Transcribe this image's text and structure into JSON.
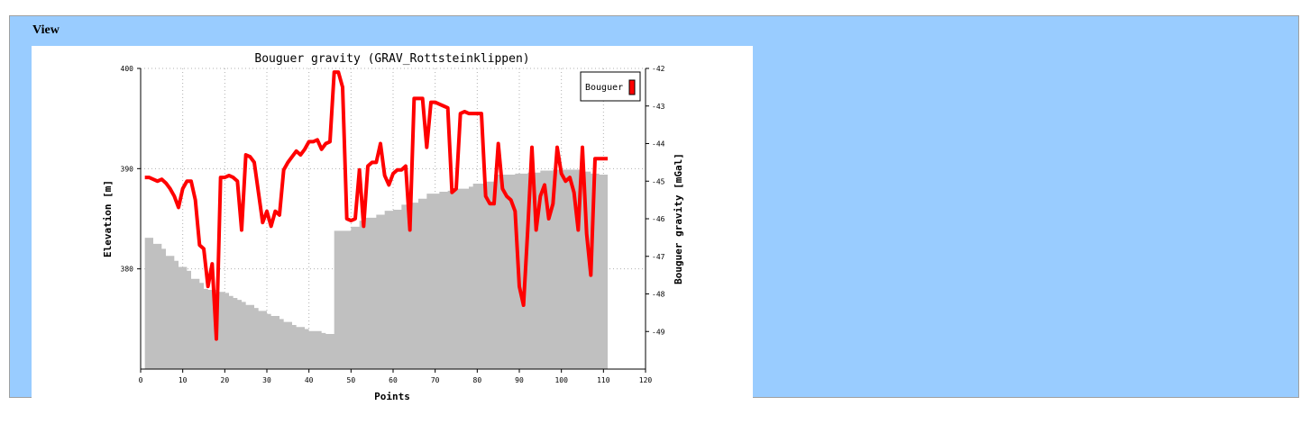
{
  "panel": {
    "legend": "View"
  },
  "chart_data": {
    "type": "line",
    "title": "Bouguer gravity (GRAV_Rottsteinklippen)",
    "xlabel": "Points",
    "ylabel_left": "Elevation [m]",
    "ylabel_right": "Bouguer gravity [mGal]",
    "xlim": [
      0,
      120
    ],
    "xticks": [
      0,
      10,
      20,
      30,
      40,
      50,
      60,
      70,
      80,
      90,
      100,
      110,
      120
    ],
    "ylim_left": [
      370,
      400
    ],
    "yticks_left": [
      380,
      390,
      400
    ],
    "ylim_right": [
      -50,
      -42
    ],
    "yticks_right": [
      -42,
      -43,
      -44,
      -45,
      -46,
      -47,
      -48,
      -49
    ],
    "grid": true,
    "legend_position": "top-right",
    "colors": {
      "gravity": "#ff0000",
      "elevation": "#c0c0c0",
      "panel": "#99ccff"
    },
    "series": [
      {
        "name": "Bouguer",
        "axis": "right",
        "x": [
          1,
          2,
          3,
          4,
          5,
          6,
          7,
          8,
          9,
          10,
          11,
          12,
          13,
          14,
          15,
          16,
          17,
          18,
          19,
          20,
          21,
          22,
          23,
          24,
          25,
          26,
          27,
          28,
          29,
          30,
          31,
          32,
          33,
          34,
          35,
          36,
          37,
          38,
          39,
          40,
          41,
          42,
          43,
          44,
          45,
          46,
          47,
          48,
          49,
          50,
          51,
          52,
          53,
          54,
          55,
          56,
          57,
          58,
          59,
          60,
          61,
          62,
          63,
          64,
          65,
          66,
          67,
          68,
          69,
          70,
          71,
          72,
          73,
          74,
          75,
          76,
          77,
          78,
          79,
          80,
          81,
          82,
          83,
          84,
          85,
          86,
          87,
          88,
          89,
          90,
          91,
          92,
          93,
          94,
          95,
          96,
          97,
          98,
          99,
          100,
          101,
          102,
          103,
          104,
          105,
          106,
          107,
          108,
          109,
          110,
          111
        ],
        "values": [
          -44.9,
          -44.9,
          -44.95,
          -45,
          -44.95,
          -45.05,
          -45.2,
          -45.4,
          -45.7,
          -45.2,
          -45.0,
          -45.0,
          -45.5,
          -46.7,
          -46.8,
          -47.8,
          -47.2,
          -49.2,
          -44.9,
          -44.9,
          -44.85,
          -44.9,
          -45.0,
          -46.3,
          -44.3,
          -44.35,
          -44.5,
          -45.3,
          -46.1,
          -45.8,
          -46.2,
          -45.8,
          -45.9,
          -44.7,
          -44.5,
          -44.35,
          -44.2,
          -44.3,
          -44.15,
          -43.95,
          -43.95,
          -43.9,
          -44.15,
          -44.0,
          -43.95,
          -42.1,
          -42.1,
          -42.5,
          -46.0,
          -46.05,
          -46.0,
          -44.7,
          -46.2,
          -44.6,
          -44.5,
          -44.5,
          -44.0,
          -44.85,
          -45.1,
          -44.8,
          -44.7,
          -44.7,
          -44.6,
          -46.3,
          -42.8,
          -42.8,
          -42.8,
          -44.1,
          -42.9,
          -42.9,
          -42.95,
          -43.0,
          -43.05,
          -45.3,
          -45.2,
          -43.2,
          -43.15,
          -43.2,
          -43.2,
          -43.2,
          -43.2,
          -45.4,
          -45.6,
          -45.6,
          -44.0,
          -45.2,
          -45.4,
          -45.5,
          -45.8,
          -47.8,
          -48.3,
          -46.3,
          -44.1,
          -46.3,
          -45.4,
          -45.1,
          -46.0,
          -45.6,
          -44.1,
          -44.8,
          -45.0,
          -44.9,
          -45.3,
          -46.3,
          -44.1,
          -46.4,
          -47.5,
          -44.4,
          -44.4,
          -44.4,
          -44.4
        ]
      },
      {
        "name": "Elevation",
        "axis": "left",
        "x": [
          1,
          2,
          3,
          4,
          5,
          6,
          7,
          8,
          9,
          10,
          11,
          12,
          13,
          14,
          15,
          16,
          17,
          18,
          19,
          20,
          21,
          22,
          23,
          24,
          25,
          26,
          27,
          28,
          29,
          30,
          31,
          32,
          33,
          34,
          35,
          36,
          37,
          38,
          39,
          40,
          41,
          42,
          43,
          44,
          45,
          46,
          47,
          48,
          49,
          50,
          51,
          52,
          53,
          54,
          55,
          56,
          57,
          58,
          59,
          60,
          61,
          62,
          63,
          64,
          65,
          66,
          67,
          68,
          69,
          70,
          71,
          72,
          73,
          74,
          75,
          76,
          77,
          78,
          79,
          80,
          81,
          82,
          83,
          84,
          85,
          86,
          87,
          88,
          89,
          90,
          91,
          92,
          93,
          94,
          95,
          96,
          97,
          98,
          99,
          100,
          101,
          102,
          103,
          104,
          105,
          106,
          107,
          108,
          109,
          110,
          111
        ],
        "values": [
          383.1,
          383.1,
          382.5,
          382.5,
          382.0,
          381.3,
          381.3,
          380.8,
          380.2,
          380.2,
          379.8,
          379.0,
          379.0,
          378.6,
          378.0,
          377.9,
          377.9,
          377.7,
          377.7,
          377.6,
          377.3,
          377.1,
          376.9,
          376.7,
          376.4,
          376.4,
          376.1,
          375.8,
          375.8,
          375.5,
          375.3,
          375.3,
          375.0,
          374.7,
          374.7,
          374.4,
          374.2,
          374.2,
          374.0,
          373.8,
          373.8,
          373.8,
          373.6,
          373.5,
          373.5,
          383.8,
          383.8,
          383.8,
          383.8,
          384.2,
          384.2,
          384.8,
          385.1,
          385.1,
          385.1,
          385.4,
          385.4,
          385.8,
          385.8,
          385.9,
          385.9,
          386.4,
          386.4,
          386.6,
          386.6,
          387.0,
          387.0,
          387.5,
          387.5,
          387.5,
          387.7,
          387.7,
          387.8,
          387.8,
          388.0,
          388.0,
          388.0,
          388.2,
          388.5,
          388.5,
          388.5,
          388.7,
          388.7,
          389.4,
          389.4,
          389.4,
          389.4,
          389.4,
          389.5,
          389.5,
          389.5,
          389.6,
          389.6,
          389.6,
          389.8,
          389.8,
          389.8,
          389.9,
          389.9,
          389.9,
          389.9,
          389.9,
          389.9,
          389.9,
          389.7,
          389.7,
          389.5,
          389.5,
          389.4,
          389.4,
          389.4
        ]
      }
    ]
  }
}
